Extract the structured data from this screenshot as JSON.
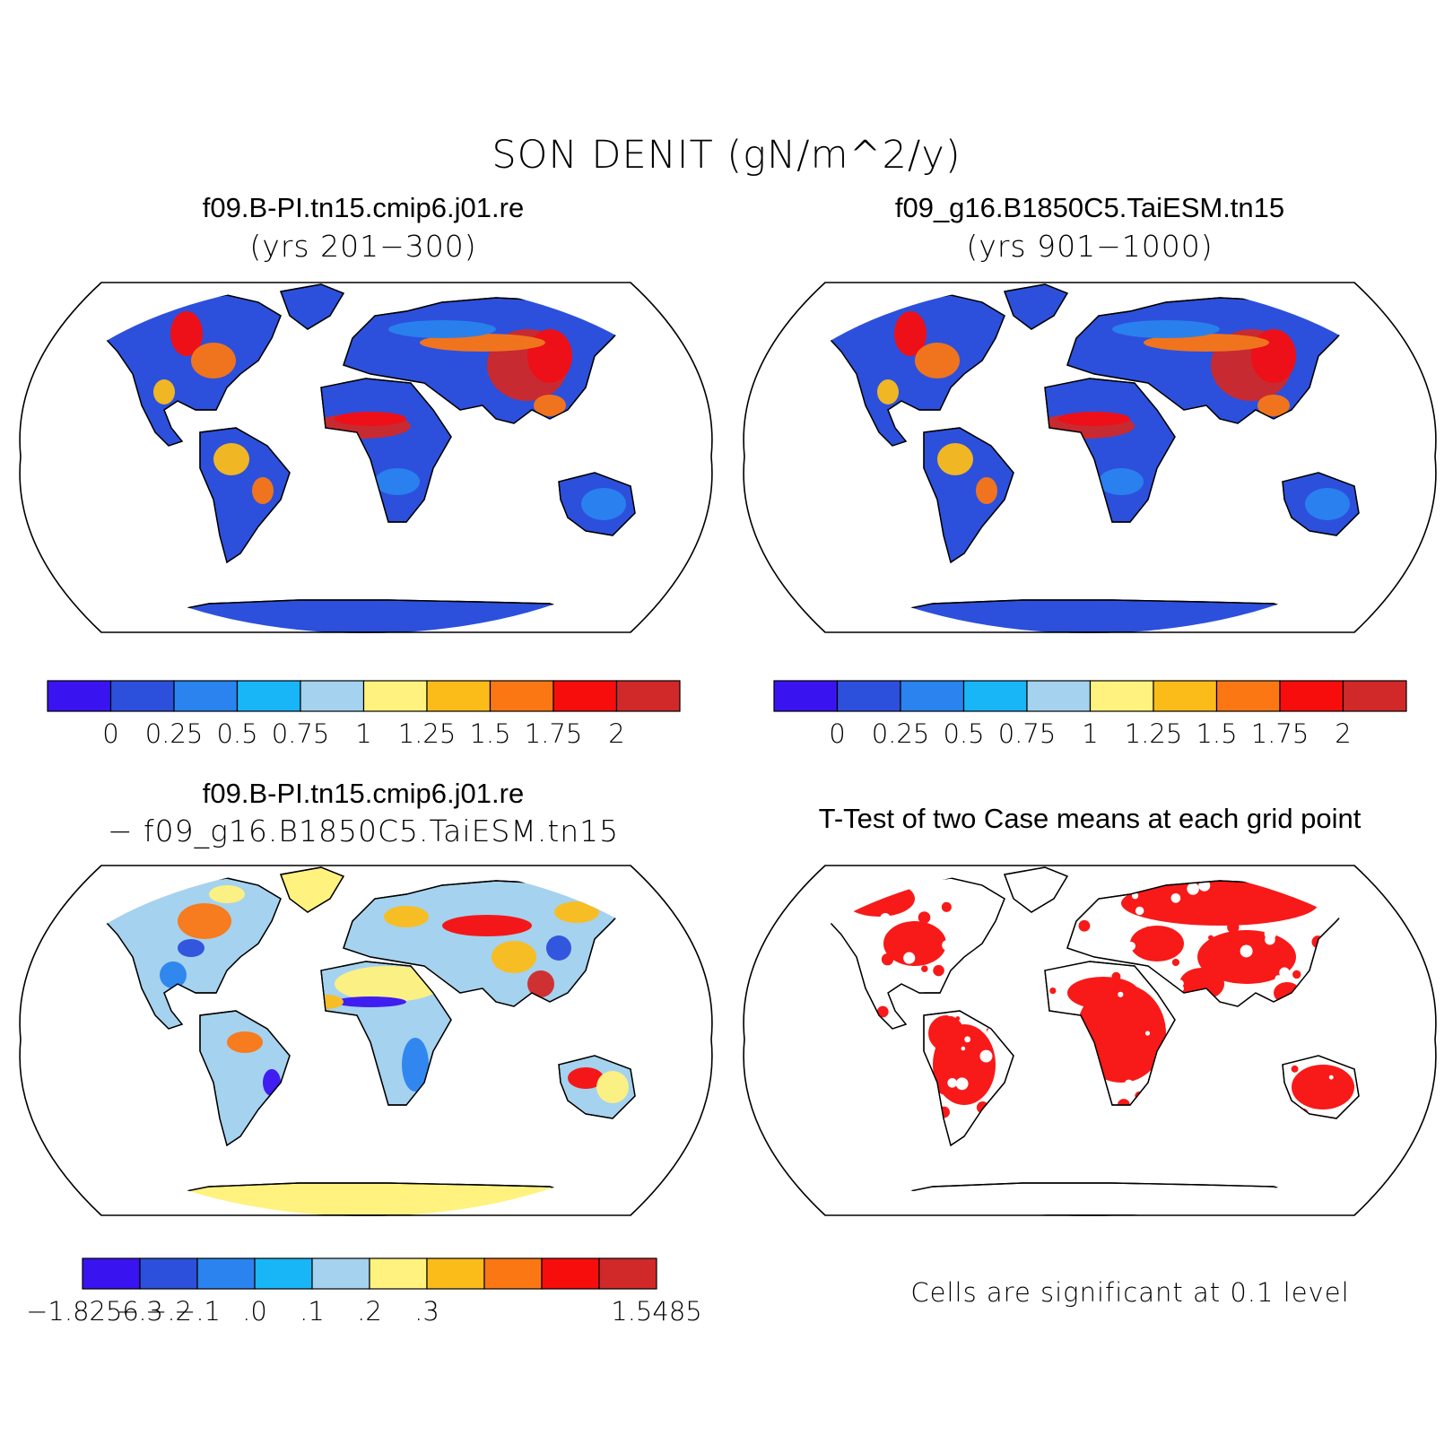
{
  "title": "SON DENIT (gN/m^2/y)",
  "panels": [
    {
      "title": "f09.B-PI.tn15.cmip6.j01.re",
      "subtitle": "(yrs 201−300)"
    },
    {
      "title": "f09_g16.B1850C5.TaiESM.tn15",
      "subtitle": "(yrs 901−1000)"
    },
    {
      "title": "f09.B-PI.tn15.cmip6.j01.re",
      "subtitle": "− f09_g16.B1850C5.TaiESM.tn15"
    },
    {
      "title": "T-Test of two Case means at each grid point",
      "subtitle": ""
    }
  ],
  "colorbar_mean": {
    "colors": [
      "#3a14f0",
      "#2c50dc",
      "#2a83ee",
      "#18b6f6",
      "#a5d2ee",
      "#fff27e",
      "#fbbc19",
      "#fb7714",
      "#f80d0d",
      "#d12929"
    ],
    "labels": [
      "0",
      "0.25",
      "0.5",
      "0.75",
      "1",
      "1.25",
      "1.5",
      "1.75",
      "2"
    ]
  },
  "colorbar_diff": {
    "colors": [
      "#3a14f0",
      "#2c50dc",
      "#2a83ee",
      "#18b6f6",
      "#a5d2ee",
      "#fff27e",
      "#fbbc19",
      "#fb7714",
      "#f80d0d",
      "#d12929"
    ],
    "labels": [
      "−1.8256",
      "−.3",
      "−.2",
      "−.1",
      ".0",
      ".1",
      ".2",
      ".3",
      "1.5485"
    ],
    "label_positions": [
      0,
      1,
      1.5,
      2,
      3,
      4,
      5,
      6,
      10
    ]
  },
  "ttest_note": "Cells are significant at 0.1 level",
  "colors": {
    "land_low": "#2c50dc",
    "sig": "#f80d0d",
    "diff_base": "#a5d2ee"
  }
}
